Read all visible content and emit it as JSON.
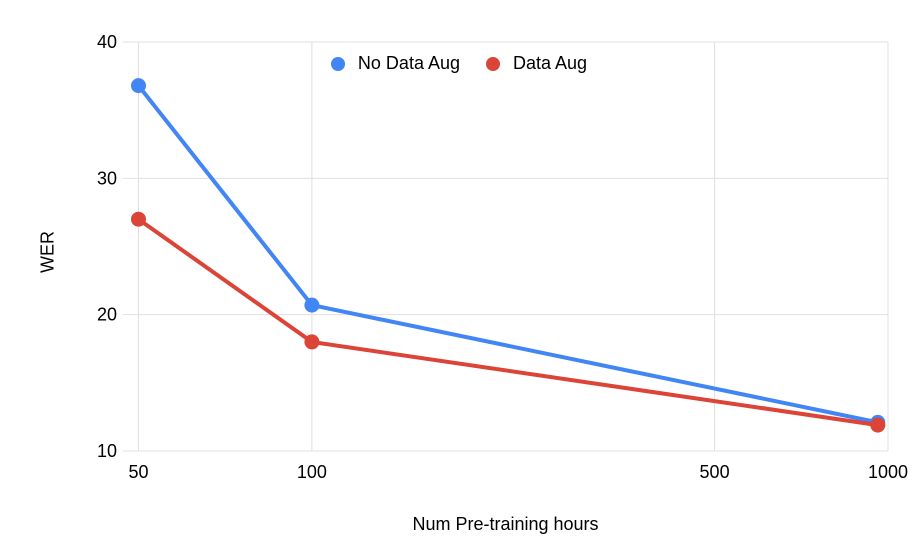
{
  "chart_data": {
    "type": "line",
    "title": "",
    "xlabel": "Num Pre-training hours",
    "ylabel": "WER",
    "x_scale": "log",
    "x": [
      50,
      100,
      960
    ],
    "series": [
      {
        "name": "No Data Aug",
        "color": "#4285F4",
        "values": [
          36.8,
          20.7,
          12.1
        ]
      },
      {
        "name": "Data Aug",
        "color": "#DB4437",
        "values": [
          27.0,
          18.0,
          11.9
        ]
      }
    ],
    "x_ticks": [
      50,
      100,
      500,
      1000
    ],
    "y_ticks": [
      10,
      20,
      30,
      40
    ],
    "xlim": [
      47,
      1000
    ],
    "ylim": [
      10,
      40
    ],
    "grid": true,
    "grid_color": "#e0e0e0",
    "text_color": "#000000",
    "background_color": "#ffffff",
    "legend_position": "top-center-inside",
    "marker": "circle"
  }
}
